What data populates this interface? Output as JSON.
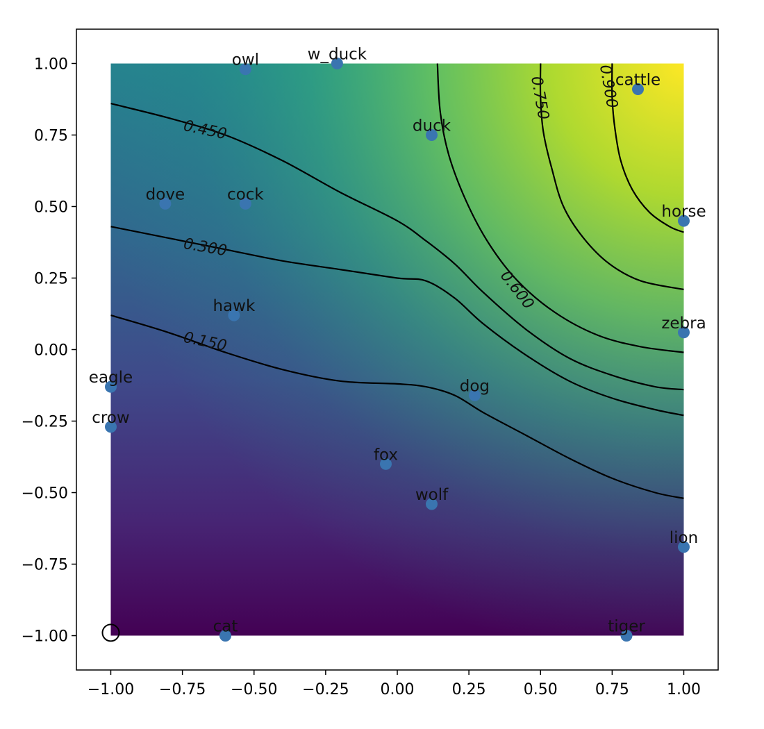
{
  "chart_data": {
    "type": "scatter",
    "background": "contour",
    "colormap": "viridis",
    "xlim": [
      -1.12,
      1.12
    ],
    "ylim": [
      -1.12,
      1.12
    ],
    "x_ticks": [
      -1.0,
      -0.75,
      -0.5,
      -0.25,
      0.0,
      0.25,
      0.5,
      0.75,
      1.0
    ],
    "y_ticks": [
      -1.0,
      -0.75,
      -0.5,
      -0.25,
      0.0,
      0.25,
      0.5,
      0.75,
      1.0
    ],
    "x_tick_labels": [
      "−1.00",
      "−0.75",
      "−0.50",
      "−0.25",
      "0.00",
      "0.25",
      "0.50",
      "0.75",
      "1.00"
    ],
    "y_tick_labels": [
      "−1.00",
      "−0.75",
      "−0.50",
      "−0.25",
      "0.00",
      "0.25",
      "0.50",
      "0.75",
      "1.00"
    ],
    "grid": false,
    "point_color": "#3a75b0",
    "points": [
      {
        "label": "owl",
        "x": -0.53,
        "y": 0.98
      },
      {
        "label": "w_duck",
        "x": -0.21,
        "y": 1.0
      },
      {
        "label": "duck",
        "x": 0.12,
        "y": 0.75
      },
      {
        "label": "cattle",
        "x": 0.84,
        "y": 0.91
      },
      {
        "label": "dove",
        "x": -0.81,
        "y": 0.51
      },
      {
        "label": "cock",
        "x": -0.53,
        "y": 0.51
      },
      {
        "label": "horse",
        "x": 1.0,
        "y": 0.45
      },
      {
        "label": "hawk",
        "x": -0.57,
        "y": 0.12
      },
      {
        "label": "zebra",
        "x": 1.0,
        "y": 0.06
      },
      {
        "label": "eagle",
        "x": -1.0,
        "y": -0.13
      },
      {
        "label": "dog",
        "x": 0.27,
        "y": -0.16
      },
      {
        "label": "crow",
        "x": -1.0,
        "y": -0.27
      },
      {
        "label": "fox",
        "x": -0.04,
        "y": -0.4
      },
      {
        "label": "wolf",
        "x": 0.12,
        "y": -0.54
      },
      {
        "label": "lion",
        "x": 1.0,
        "y": -0.69
      },
      {
        "label": "cat",
        "x": -0.6,
        "y": -1.0
      },
      {
        "label": "tiger",
        "x": 0.8,
        "y": -1.0
      }
    ],
    "highlight_marker": {
      "x": -1.0,
      "y": -0.99,
      "style": "hollow circle"
    },
    "contour_levels": [
      0.15,
      0.3,
      0.45,
      0.6,
      0.75,
      0.9
    ],
    "contour_labels": [
      "0.150",
      "0.300",
      "0.450",
      "0.600",
      "0.750",
      "0.900"
    ],
    "contours": [
      {
        "level": 0.15,
        "points": [
          [
            -1.0,
            0.12
          ],
          [
            -0.8,
            0.06
          ],
          [
            -0.6,
            -0.01
          ],
          [
            -0.4,
            -0.07
          ],
          [
            -0.2,
            -0.11
          ],
          [
            0.0,
            -0.12
          ],
          [
            0.1,
            -0.13
          ],
          [
            0.2,
            -0.16
          ],
          [
            0.3,
            -0.22
          ],
          [
            0.45,
            -0.3
          ],
          [
            0.6,
            -0.38
          ],
          [
            0.75,
            -0.45
          ],
          [
            0.9,
            -0.5
          ],
          [
            1.0,
            -0.52
          ]
        ]
      },
      {
        "level": 0.3,
        "points": [
          [
            -1.0,
            0.43
          ],
          [
            -0.8,
            0.39
          ],
          [
            -0.6,
            0.35
          ],
          [
            -0.4,
            0.31
          ],
          [
            -0.2,
            0.28
          ],
          [
            0.0,
            0.25
          ],
          [
            0.1,
            0.24
          ],
          [
            0.2,
            0.18
          ],
          [
            0.3,
            0.09
          ],
          [
            0.45,
            -0.02
          ],
          [
            0.6,
            -0.11
          ],
          [
            0.75,
            -0.17
          ],
          [
            0.9,
            -0.21
          ],
          [
            1.0,
            -0.23
          ]
        ]
      },
      {
        "level": 0.45,
        "points": [
          [
            -1.0,
            0.86
          ],
          [
            -0.8,
            0.81
          ],
          [
            -0.6,
            0.75
          ],
          [
            -0.4,
            0.66
          ],
          [
            -0.2,
            0.55
          ],
          [
            0.0,
            0.45
          ],
          [
            0.1,
            0.38
          ],
          [
            0.2,
            0.3
          ],
          [
            0.3,
            0.2
          ],
          [
            0.45,
            0.07
          ],
          [
            0.6,
            -0.03
          ],
          [
            0.75,
            -0.09
          ],
          [
            0.9,
            -0.13
          ],
          [
            1.0,
            -0.14
          ]
        ]
      },
      {
        "level": 0.6,
        "points": [
          [
            0.14,
            1.0
          ],
          [
            0.15,
            0.83
          ],
          [
            0.18,
            0.68
          ],
          [
            0.24,
            0.52
          ],
          [
            0.32,
            0.37
          ],
          [
            0.42,
            0.24
          ],
          [
            0.55,
            0.13
          ],
          [
            0.7,
            0.05
          ],
          [
            0.85,
            0.01
          ],
          [
            1.0,
            -0.01
          ]
        ]
      },
      {
        "level": 0.75,
        "points": [
          [
            0.5,
            1.0
          ],
          [
            0.5,
            0.88
          ],
          [
            0.51,
            0.76
          ],
          [
            0.54,
            0.63
          ],
          [
            0.58,
            0.5
          ],
          [
            0.65,
            0.39
          ],
          [
            0.74,
            0.3
          ],
          [
            0.85,
            0.24
          ],
          [
            1.0,
            0.21
          ]
        ]
      },
      {
        "level": 0.9,
        "points": [
          [
            0.75,
            1.0
          ],
          [
            0.75,
            0.88
          ],
          [
            0.76,
            0.77
          ],
          [
            0.78,
            0.66
          ],
          [
            0.82,
            0.56
          ],
          [
            0.88,
            0.48
          ],
          [
            0.95,
            0.43
          ],
          [
            1.0,
            0.41
          ]
        ]
      }
    ],
    "contour_label_positions": [
      {
        "text": "0.150",
        "x": -0.67,
        "y": 0.03,
        "angle": 12
      },
      {
        "text": "0.300",
        "x": -0.67,
        "y": 0.36,
        "angle": 10
      },
      {
        "text": "0.450",
        "x": -0.67,
        "y": 0.77,
        "angle": 12
      },
      {
        "text": "0.600",
        "x": 0.42,
        "y": 0.21,
        "angle": 52
      },
      {
        "text": "0.750",
        "x": 0.5,
        "y": 0.88,
        "angle": 80
      },
      {
        "text": "0.900",
        "x": 0.74,
        "y": 0.92,
        "angle": 80
      }
    ]
  }
}
